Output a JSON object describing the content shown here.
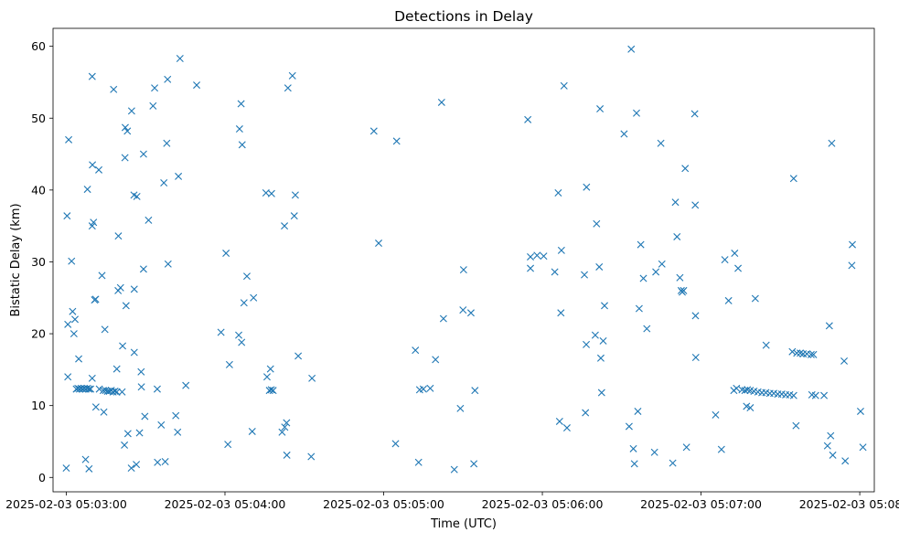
{
  "chart_data": {
    "type": "scatter",
    "title": "Detections in Delay",
    "xlabel": "Time (UTC)",
    "ylabel": "Bistatic Delay (km)",
    "x_unit": "seconds after 2025-02-03 05:03:00",
    "xlim": [
      -5.0,
      305.5
    ],
    "ylim": [
      -2.0,
      62.5
    ],
    "xticks": [
      {
        "value": 0,
        "label": "2025-02-03 05:03:00"
      },
      {
        "value": 60,
        "label": "2025-02-03 05:04:00"
      },
      {
        "value": 120,
        "label": "2025-02-03 05:05:00"
      },
      {
        "value": 180,
        "label": "2025-02-03 05:06:00"
      },
      {
        "value": 240,
        "label": "2025-02-03 05:07:00"
      },
      {
        "value": 300,
        "label": "2025-02-03 05:08:00"
      }
    ],
    "yticks": [
      0,
      10,
      20,
      30,
      40,
      50,
      60
    ],
    "marker": "x",
    "color": "#1f77b4",
    "grid": false,
    "points": [
      [
        0.0,
        1.3
      ],
      [
        0.3,
        36.4
      ],
      [
        0.9,
        47.0
      ],
      [
        0.6,
        21.3
      ],
      [
        0.6,
        14.0
      ],
      [
        2.0,
        30.1
      ],
      [
        2.4,
        23.1
      ],
      [
        2.9,
        20.0
      ],
      [
        3.3,
        22.0
      ],
      [
        4.7,
        16.5
      ],
      [
        3.8,
        12.3
      ],
      [
        4.4,
        12.4
      ],
      [
        5.0,
        12.3
      ],
      [
        5.6,
        12.4
      ],
      [
        6.2,
        12.3
      ],
      [
        6.8,
        12.4
      ],
      [
        7.4,
        12.3
      ],
      [
        8.0,
        12.4
      ],
      [
        8.6,
        12.3
      ],
      [
        7.3,
        2.5
      ],
      [
        8.0,
        40.1
      ],
      [
        8.6,
        1.2
      ],
      [
        9.2,
        12.3
      ],
      [
        9.8,
        13.8
      ],
      [
        9.8,
        55.8
      ],
      [
        9.9,
        43.5
      ],
      [
        9.8,
        35.0
      ],
      [
        10.3,
        35.5
      ],
      [
        10.7,
        24.7
      ],
      [
        11.1,
        24.8
      ],
      [
        11.2,
        9.8
      ],
      [
        12.3,
        42.8
      ],
      [
        12.5,
        12.3
      ],
      [
        13.5,
        28.1
      ],
      [
        14.0,
        12.1
      ],
      [
        14.2,
        9.1
      ],
      [
        14.6,
        20.6
      ],
      [
        14.9,
        12.1
      ],
      [
        15.6,
        12.0
      ],
      [
        16.3,
        12.0
      ],
      [
        17.0,
        12.1
      ],
      [
        17.7,
        11.9
      ],
      [
        18.4,
        12.0
      ],
      [
        19.1,
        11.9
      ],
      [
        17.9,
        54.0
      ],
      [
        19.1,
        15.1
      ],
      [
        19.6,
        26.0
      ],
      [
        19.7,
        33.6
      ],
      [
        20.5,
        26.4
      ],
      [
        21.1,
        11.9
      ],
      [
        21.3,
        18.3
      ],
      [
        22.2,
        44.5
      ],
      [
        22.0,
        4.5
      ],
      [
        22.3,
        48.7
      ],
      [
        22.6,
        23.9
      ],
      [
        23.1,
        48.2
      ],
      [
        23.3,
        6.1
      ],
      [
        24.6,
        1.3
      ],
      [
        24.7,
        51.0
      ],
      [
        25.6,
        39.3
      ],
      [
        25.7,
        26.2
      ],
      [
        25.7,
        17.4
      ],
      [
        26.5,
        1.8
      ],
      [
        26.7,
        39.1
      ],
      [
        27.7,
        6.2
      ],
      [
        28.3,
        14.7
      ],
      [
        28.4,
        12.6
      ],
      [
        29.2,
        45.0
      ],
      [
        29.2,
        29.0
      ],
      [
        29.7,
        8.5
      ],
      [
        31.1,
        35.8
      ],
      [
        32.8,
        51.7
      ],
      [
        33.4,
        54.2
      ],
      [
        34.4,
        12.3
      ],
      [
        34.5,
        2.1
      ],
      [
        35.9,
        7.3
      ],
      [
        36.9,
        41.0
      ],
      [
        37.4,
        2.2
      ],
      [
        38.0,
        46.5
      ],
      [
        38.3,
        55.4
      ],
      [
        38.5,
        29.7
      ],
      [
        41.4,
        8.6
      ],
      [
        42.1,
        6.3
      ],
      [
        42.4,
        41.9
      ],
      [
        43.0,
        58.3
      ],
      [
        45.2,
        12.8
      ],
      [
        49.3,
        54.6
      ],
      [
        58.5,
        20.2
      ],
      [
        60.4,
        31.2
      ],
      [
        61.1,
        4.6
      ],
      [
        61.7,
        15.7
      ],
      [
        65.2,
        19.8
      ],
      [
        65.5,
        48.5
      ],
      [
        66.1,
        52.0
      ],
      [
        66.3,
        18.8
      ],
      [
        66.5,
        46.3
      ],
      [
        67.2,
        24.3
      ],
      [
        68.3,
        28.0
      ],
      [
        70.3,
        6.4
      ],
      [
        70.8,
        25.0
      ],
      [
        75.5,
        39.6
      ],
      [
        75.9,
        14.0
      ],
      [
        76.8,
        12.1
      ],
      [
        77.2,
        15.1
      ],
      [
        77.5,
        12.2
      ],
      [
        77.6,
        39.5
      ],
      [
        78.2,
        12.1
      ],
      [
        81.6,
        6.3
      ],
      [
        82.6,
        7.0
      ],
      [
        82.5,
        35.0
      ],
      [
        83.3,
        7.6
      ],
      [
        83.4,
        3.1
      ],
      [
        83.8,
        54.2
      ],
      [
        85.5,
        55.9
      ],
      [
        86.2,
        36.4
      ],
      [
        86.6,
        39.3
      ],
      [
        87.7,
        16.9
      ],
      [
        92.6,
        2.9
      ],
      [
        92.9,
        13.8
      ],
      [
        116.3,
        48.2
      ],
      [
        118.1,
        32.6
      ],
      [
        124.9,
        46.8
      ],
      [
        124.5,
        4.7
      ],
      [
        132.0,
        17.7
      ],
      [
        133.2,
        2.1
      ],
      [
        133.6,
        12.2
      ],
      [
        135.0,
        12.3
      ],
      [
        137.6,
        12.4
      ],
      [
        139.6,
        16.4
      ],
      [
        142.6,
        22.1
      ],
      [
        141.9,
        52.2
      ],
      [
        146.7,
        1.1
      ],
      [
        149.0,
        9.6
      ],
      [
        150.0,
        23.3
      ],
      [
        150.2,
        28.9
      ],
      [
        153.0,
        22.9
      ],
      [
        154.1,
        1.9
      ],
      [
        154.5,
        12.1
      ],
      [
        174.5,
        49.8
      ],
      [
        175.5,
        29.1
      ],
      [
        175.5,
        30.7
      ],
      [
        178.0,
        30.9
      ],
      [
        180.5,
        30.8
      ],
      [
        184.7,
        28.6
      ],
      [
        186.0,
        39.6
      ],
      [
        186.5,
        7.8
      ],
      [
        187.0,
        22.9
      ],
      [
        187.2,
        31.6
      ],
      [
        188.2,
        54.5
      ],
      [
        189.3,
        6.9
      ],
      [
        195.9,
        28.2
      ],
      [
        196.6,
        18.5
      ],
      [
        196.7,
        40.4
      ],
      [
        196.3,
        9.0
      ],
      [
        200.0,
        19.8
      ],
      [
        200.5,
        35.3
      ],
      [
        201.5,
        29.3
      ],
      [
        201.8,
        51.3
      ],
      [
        202.1,
        16.6
      ],
      [
        202.4,
        11.8
      ],
      [
        203.0,
        19.0
      ],
      [
        203.5,
        23.9
      ],
      [
        210.9,
        47.8
      ],
      [
        212.8,
        7.1
      ],
      [
        213.6,
        59.6
      ],
      [
        214.4,
        4.0
      ],
      [
        214.8,
        1.9
      ],
      [
        215.6,
        50.7
      ],
      [
        216.1,
        9.2
      ],
      [
        216.6,
        23.5
      ],
      [
        217.2,
        32.4
      ],
      [
        218.2,
        27.7
      ],
      [
        219.5,
        20.7
      ],
      [
        222.4,
        3.5
      ],
      [
        222.9,
        28.6
      ],
      [
        224.8,
        46.5
      ],
      [
        225.2,
        29.7
      ],
      [
        229.3,
        2.0
      ],
      [
        230.3,
        38.3
      ],
      [
        230.9,
        33.5
      ],
      [
        232.0,
        27.8
      ],
      [
        232.5,
        26.0
      ],
      [
        232.9,
        25.8
      ],
      [
        233.4,
        26.0
      ],
      [
        234.0,
        43.0
      ],
      [
        234.5,
        4.2
      ],
      [
        237.6,
        50.6
      ],
      [
        237.8,
        37.9
      ],
      [
        237.9,
        22.5
      ],
      [
        238.0,
        16.7
      ],
      [
        245.5,
        8.7
      ],
      [
        247.7,
        3.9
      ],
      [
        249.0,
        30.3
      ],
      [
        250.4,
        24.6
      ],
      [
        252.7,
        31.2
      ],
      [
        252.4,
        12.1
      ],
      [
        253.4,
        12.4
      ],
      [
        254.0,
        29.1
      ],
      [
        255.5,
        12.2
      ],
      [
        256.6,
        12.1
      ],
      [
        257.5,
        12.2
      ],
      [
        258.6,
        12.1
      ],
      [
        257.2,
        9.9
      ],
      [
        258.6,
        9.7
      ],
      [
        260.0,
        12.0
      ],
      [
        260.5,
        24.9
      ],
      [
        261.5,
        11.9
      ],
      [
        263.0,
        11.8
      ],
      [
        264.5,
        11.8
      ],
      [
        266.0,
        11.7
      ],
      [
        267.5,
        11.7
      ],
      [
        264.6,
        18.4
      ],
      [
        269.0,
        11.6
      ],
      [
        270.5,
        11.6
      ],
      [
        272.0,
        11.5
      ],
      [
        273.5,
        11.5
      ],
      [
        275.0,
        11.4
      ],
      [
        274.5,
        17.5
      ],
      [
        275.0,
        41.6
      ],
      [
        275.9,
        7.2
      ],
      [
        276.2,
        17.3
      ],
      [
        277.5,
        17.3
      ],
      [
        278.6,
        17.2
      ],
      [
        280.0,
        17.2
      ],
      [
        281.6,
        17.1
      ],
      [
        282.5,
        17.1
      ],
      [
        281.9,
        11.5
      ],
      [
        283.3,
        11.4
      ],
      [
        286.5,
        11.4
      ],
      [
        287.8,
        4.4
      ],
      [
        288.5,
        21.1
      ],
      [
        289.0,
        5.8
      ],
      [
        289.4,
        46.5
      ],
      [
        289.8,
        3.1
      ],
      [
        294.1,
        16.2
      ],
      [
        294.5,
        2.3
      ],
      [
        297.0,
        29.5
      ],
      [
        297.2,
        32.4
      ],
      [
        300.3,
        9.2
      ],
      [
        301.2,
        4.2
      ]
    ]
  }
}
